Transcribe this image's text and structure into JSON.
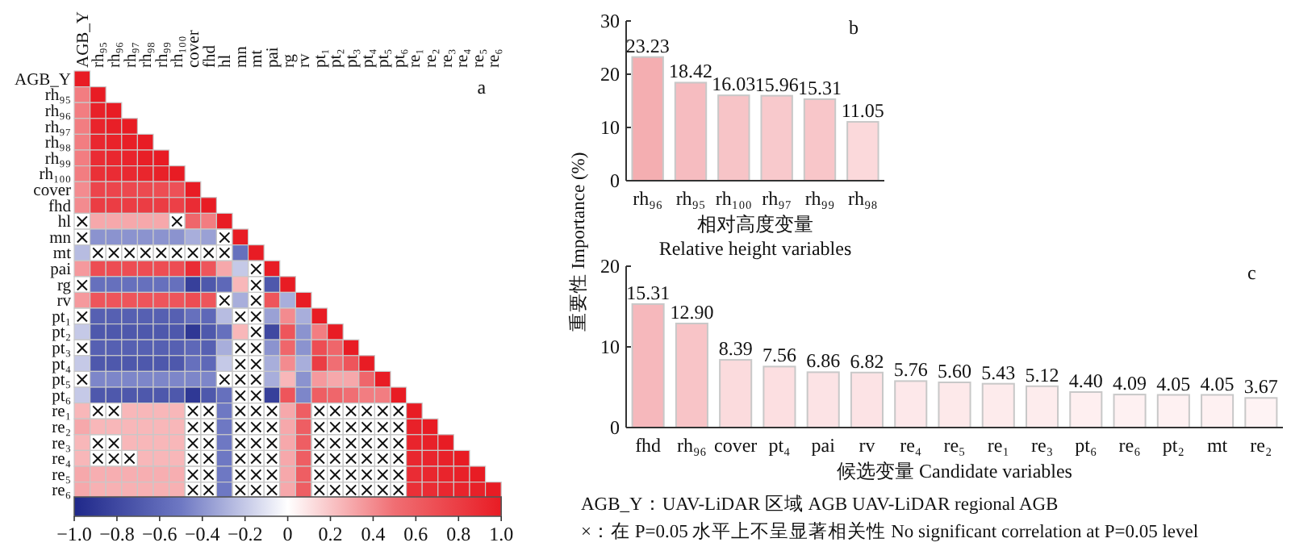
{
  "chart_data": [
    {
      "type": "heatmap",
      "title": "a",
      "categories": [
        "AGB_Y",
        "rh₉₅",
        "rh₉₆",
        "rh₉₇",
        "rh₉₈",
        "rh₉₉",
        "rh₁₀₀",
        "cover",
        "fhd",
        "hl",
        "mn",
        "mt",
        "pai",
        "rg",
        "rv",
        "pt₁",
        "pt₂",
        "pt₃",
        "pt₄",
        "pt₅",
        "pt₆",
        "re₁",
        "re₂",
        "re₃",
        "re₄",
        "re₅",
        "re₆"
      ],
      "y_categories": [
        "AGB_Y",
        "rh₉₅",
        "rh₉₆",
        "rh₉₇",
        "rh₉₈",
        "rh₉₉",
        "rh₁₀₀",
        "cover",
        "fhd",
        "hl",
        "mn",
        "mt",
        "pai",
        "rg",
        "rv",
        "pt₁",
        "pt₂",
        "pt₃",
        "pt₄",
        "pt₅",
        "pt₆",
        "re₁",
        "re₂",
        "re₃",
        "re₄",
        "re₅",
        "re₆"
      ],
      "cells": [
        [
          1,
          null,
          null,
          null,
          null,
          null,
          null,
          null,
          null,
          null,
          null,
          null,
          null,
          null,
          null,
          null,
          null,
          null,
          null,
          null,
          null,
          null,
          null,
          null,
          null,
          null,
          null
        ],
        [
          0.45,
          1,
          null,
          null,
          null,
          null,
          null,
          null,
          null,
          null,
          null,
          null,
          null,
          null,
          null,
          null,
          null,
          null,
          null,
          null,
          null,
          null,
          null,
          null,
          null,
          null,
          null
        ],
        [
          0.45,
          0.97,
          1,
          null,
          null,
          null,
          null,
          null,
          null,
          null,
          null,
          null,
          null,
          null,
          null,
          null,
          null,
          null,
          null,
          null,
          null,
          null,
          null,
          null,
          null,
          null,
          null
        ],
        [
          0.45,
          0.95,
          0.98,
          1,
          null,
          null,
          null,
          null,
          null,
          null,
          null,
          null,
          null,
          null,
          null,
          null,
          null,
          null,
          null,
          null,
          null,
          null,
          null,
          null,
          null,
          null,
          null
        ],
        [
          0.45,
          0.93,
          0.96,
          0.98,
          1,
          null,
          null,
          null,
          null,
          null,
          null,
          null,
          null,
          null,
          null,
          null,
          null,
          null,
          null,
          null,
          null,
          null,
          null,
          null,
          null,
          null,
          null
        ],
        [
          0.45,
          0.9,
          0.93,
          0.95,
          0.98,
          1,
          null,
          null,
          null,
          null,
          null,
          null,
          null,
          null,
          null,
          null,
          null,
          null,
          null,
          null,
          null,
          null,
          null,
          null,
          null,
          null,
          null
        ],
        [
          0.45,
          0.88,
          0.9,
          0.92,
          0.94,
          0.97,
          1,
          null,
          null,
          null,
          null,
          null,
          null,
          null,
          null,
          null,
          null,
          null,
          null,
          null,
          null,
          null,
          null,
          null,
          null,
          null,
          null
        ],
        [
          0.4,
          0.75,
          0.75,
          0.73,
          0.72,
          0.7,
          0.68,
          1,
          null,
          null,
          null,
          null,
          null,
          null,
          null,
          null,
          null,
          null,
          null,
          null,
          null,
          null,
          null,
          null,
          null,
          null,
          null
        ],
        [
          0.4,
          0.8,
          0.8,
          0.8,
          0.8,
          0.8,
          0.78,
          0.9,
          1,
          null,
          null,
          null,
          null,
          null,
          null,
          null,
          null,
          null,
          null,
          null,
          null,
          null,
          null,
          null,
          null,
          null,
          null
        ],
        [
          null,
          0.3,
          0.3,
          0.3,
          0.3,
          0.3,
          null,
          0.55,
          0.45,
          1,
          null,
          null,
          null,
          null,
          null,
          null,
          null,
          null,
          null,
          null,
          null,
          null,
          null,
          null,
          null,
          null,
          null
        ],
        [
          null,
          -0.4,
          -0.4,
          -0.4,
          -0.4,
          -0.4,
          -0.4,
          -0.3,
          -0.35,
          null,
          1,
          null,
          null,
          null,
          null,
          null,
          null,
          null,
          null,
          null,
          null,
          null,
          null,
          null,
          null,
          null,
          null
        ],
        [
          -0.25,
          null,
          null,
          null,
          null,
          null,
          null,
          null,
          null,
          null,
          -0.55,
          1,
          null,
          null,
          null,
          null,
          null,
          null,
          null,
          null,
          null,
          null,
          null,
          null,
          null,
          null,
          null
        ],
        [
          0.35,
          0.7,
          0.7,
          0.7,
          0.7,
          0.7,
          0.7,
          0.9,
          0.65,
          0.3,
          -0.2,
          null,
          1,
          null,
          null,
          null,
          null,
          null,
          null,
          null,
          null,
          null,
          null,
          null,
          null,
          null,
          null
        ],
        [
          null,
          -0.55,
          -0.55,
          -0.55,
          -0.55,
          -0.55,
          -0.55,
          -0.85,
          -0.7,
          -0.6,
          0.25,
          null,
          -0.7,
          1,
          null,
          null,
          null,
          null,
          null,
          null,
          null,
          null,
          null,
          null,
          null,
          null,
          null
        ],
        [
          0.35,
          0.65,
          0.65,
          0.65,
          0.65,
          0.65,
          0.65,
          0.7,
          0.65,
          null,
          -0.3,
          null,
          0.65,
          -0.3,
          1,
          null,
          null,
          null,
          null,
          null,
          null,
          null,
          null,
          null,
          null,
          null,
          null
        ],
        [
          null,
          -0.65,
          -0.65,
          -0.65,
          -0.65,
          -0.65,
          -0.65,
          -0.55,
          -0.6,
          -0.25,
          null,
          null,
          -0.35,
          0.4,
          -0.3,
          1,
          null,
          null,
          null,
          null,
          null,
          null,
          null,
          null,
          null,
          null,
          null
        ],
        [
          -0.2,
          -0.7,
          -0.7,
          -0.7,
          -0.7,
          -0.7,
          -0.7,
          -0.9,
          -0.7,
          -0.55,
          0.25,
          null,
          -0.8,
          0.65,
          -0.4,
          0.45,
          1,
          null,
          null,
          null,
          null,
          null,
          null,
          null,
          null,
          null,
          null
        ],
        [
          null,
          -0.65,
          -0.65,
          -0.65,
          -0.65,
          -0.65,
          -0.65,
          -0.6,
          -0.65,
          -0.3,
          null,
          null,
          -0.4,
          0.55,
          -0.4,
          0.7,
          0.55,
          1,
          null,
          null,
          null,
          null,
          null,
          null,
          null,
          null,
          null
        ],
        [
          -0.2,
          -0.7,
          -0.7,
          -0.7,
          -0.7,
          -0.7,
          -0.7,
          -0.55,
          -0.6,
          -0.2,
          null,
          null,
          -0.3,
          0.4,
          -0.3,
          0.8,
          0.5,
          0.65,
          1,
          null,
          null,
          null,
          null,
          null,
          null,
          null,
          null
        ],
        [
          null,
          -0.45,
          -0.45,
          -0.45,
          -0.45,
          -0.45,
          -0.45,
          -0.45,
          -0.45,
          null,
          null,
          null,
          -0.3,
          0.25,
          -0.4,
          0.35,
          0.3,
          0.3,
          0.55,
          1,
          null,
          null,
          null,
          null,
          null,
          null,
          null
        ],
        [
          -0.2,
          -0.7,
          -0.7,
          -0.7,
          -0.7,
          -0.7,
          -0.7,
          -0.9,
          -0.7,
          -0.55,
          null,
          null,
          -0.85,
          0.65,
          -0.45,
          0.6,
          0.55,
          0.5,
          0.45,
          0.45,
          1,
          null,
          null,
          null,
          null,
          null,
          null
        ],
        [
          0.25,
          null,
          null,
          0.25,
          0.25,
          0.25,
          0.25,
          null,
          null,
          -0.5,
          null,
          null,
          null,
          0.3,
          0.6,
          null,
          null,
          null,
          null,
          null,
          null,
          1,
          null,
          null,
          null,
          null,
          null
        ],
        [
          0.3,
          0.25,
          0.25,
          0.25,
          0.25,
          0.25,
          0.25,
          null,
          null,
          -0.5,
          null,
          null,
          null,
          0.3,
          0.6,
          null,
          null,
          null,
          null,
          null,
          null,
          0.97,
          1,
          null,
          null,
          null,
          null
        ],
        [
          0.25,
          null,
          null,
          0.25,
          0.25,
          0.25,
          0.25,
          null,
          null,
          -0.5,
          null,
          null,
          null,
          0.3,
          0.6,
          null,
          null,
          null,
          null,
          null,
          null,
          0.95,
          0.97,
          1,
          null,
          null,
          null
        ],
        [
          0.25,
          null,
          null,
          null,
          0.25,
          0.25,
          0.25,
          null,
          null,
          -0.5,
          null,
          null,
          null,
          0.3,
          0.6,
          null,
          null,
          null,
          null,
          null,
          null,
          0.93,
          0.95,
          0.97,
          1,
          null,
          null
        ],
        [
          0.3,
          0.28,
          0.28,
          0.28,
          0.28,
          0.28,
          0.28,
          null,
          null,
          -0.5,
          null,
          null,
          null,
          0.3,
          0.6,
          null,
          null,
          null,
          null,
          null,
          null,
          0.9,
          0.93,
          0.95,
          0.97,
          1,
          null
        ],
        [
          0.3,
          0.27,
          0.27,
          0.27,
          0.27,
          0.27,
          0.27,
          null,
          null,
          -0.5,
          null,
          null,
          null,
          0.3,
          0.6,
          null,
          null,
          null,
          null,
          null,
          null,
          0.88,
          0.9,
          0.93,
          0.95,
          0.97,
          1
        ]
      ],
      "cell_labels": [
        [
          null,
          null,
          null,
          null,
          null,
          null,
          null,
          null,
          null,
          null,
          null,
          null,
          null,
          null,
          null,
          null,
          null,
          null,
          null,
          null,
          null,
          null,
          null,
          null,
          null,
          null,
          null
        ],
        [
          null,
          null,
          null,
          null,
          null,
          null,
          null,
          null,
          null,
          null,
          null,
          null,
          null,
          null,
          null,
          null,
          null,
          null,
          null,
          null,
          null,
          null,
          null,
          null,
          null,
          null,
          null
        ],
        [
          null,
          null,
          null,
          null,
          null,
          null,
          null,
          null,
          null,
          null,
          null,
          null,
          null,
          null,
          null,
          null,
          null,
          null,
          null,
          null,
          null,
          null,
          null,
          null,
          null,
          null,
          null
        ],
        [
          null,
          null,
          null,
          null,
          null,
          null,
          null,
          null,
          null,
          null,
          null,
          null,
          null,
          null,
          null,
          null,
          null,
          null,
          null,
          null,
          null,
          null,
          null,
          null,
          null,
          null,
          null
        ],
        [
          null,
          null,
          null,
          null,
          null,
          null,
          null,
          null,
          null,
          null,
          null,
          null,
          null,
          null,
          null,
          null,
          null,
          null,
          null,
          null,
          null,
          null,
          null,
          null,
          null,
          null,
          null
        ],
        [
          null,
          null,
          null,
          null,
          null,
          null,
          null,
          null,
          null,
          null,
          null,
          null,
          null,
          null,
          null,
          null,
          null,
          null,
          null,
          null,
          null,
          null,
          null,
          null,
          null,
          null,
          null
        ],
        [
          null,
          null,
          null,
          null,
          null,
          null,
          null,
          null,
          null,
          null,
          null,
          null,
          null,
          null,
          null,
          null,
          null,
          null,
          null,
          null,
          null,
          null,
          null,
          null,
          null,
          null,
          null
        ],
        [
          null,
          null,
          null,
          null,
          null,
          null,
          null,
          null,
          null,
          null,
          null,
          null,
          null,
          null,
          null,
          null,
          null,
          null,
          null,
          null,
          null,
          null,
          null,
          null,
          null,
          null,
          null
        ],
        [
          null,
          null,
          null,
          null,
          null,
          null,
          null,
          null,
          null,
          null,
          null,
          null,
          null,
          null,
          null,
          null,
          null,
          null,
          null,
          null,
          null,
          null,
          null,
          null,
          null,
          null,
          null
        ],
        [
          "×",
          null,
          null,
          null,
          null,
          null,
          "×",
          null,
          null,
          null,
          null,
          null,
          null,
          null,
          null,
          null,
          null,
          null,
          null,
          null,
          null,
          null,
          null,
          null,
          null,
          null,
          null
        ],
        [
          "×",
          null,
          null,
          null,
          null,
          null,
          null,
          null,
          null,
          "×",
          null,
          null,
          null,
          null,
          null,
          null,
          null,
          null,
          null,
          null,
          null,
          null,
          null,
          null,
          null,
          null,
          null
        ],
        [
          null,
          "×",
          "×",
          "×",
          "×",
          "×",
          "×",
          "×",
          "×",
          "×",
          null,
          null,
          null,
          null,
          null,
          null,
          null,
          null,
          null,
          null,
          null,
          null,
          null,
          null,
          null,
          null,
          null
        ],
        [
          null,
          null,
          null,
          null,
          null,
          null,
          null,
          null,
          null,
          null,
          null,
          "×",
          null,
          null,
          null,
          null,
          null,
          null,
          null,
          null,
          null,
          null,
          null,
          null,
          null,
          null,
          null
        ],
        [
          "×",
          null,
          null,
          null,
          null,
          null,
          null,
          null,
          null,
          null,
          null,
          "×",
          null,
          null,
          null,
          null,
          null,
          null,
          null,
          null,
          null,
          null,
          null,
          null,
          null,
          null,
          null
        ],
        [
          null,
          null,
          null,
          null,
          null,
          null,
          null,
          null,
          null,
          "×",
          null,
          "×",
          null,
          null,
          null,
          null,
          null,
          null,
          null,
          null,
          null,
          null,
          null,
          null,
          null,
          null,
          null
        ],
        [
          "×",
          null,
          null,
          null,
          null,
          null,
          null,
          null,
          null,
          null,
          "×",
          "×",
          null,
          null,
          null,
          null,
          null,
          null,
          null,
          null,
          null,
          null,
          null,
          null,
          null,
          null,
          null
        ],
        [
          null,
          null,
          null,
          null,
          null,
          null,
          null,
          null,
          null,
          null,
          null,
          "×",
          null,
          null,
          null,
          null,
          null,
          null,
          null,
          null,
          null,
          null,
          null,
          null,
          null,
          null,
          null
        ],
        [
          "×",
          null,
          null,
          null,
          null,
          null,
          null,
          null,
          null,
          null,
          "×",
          "×",
          null,
          null,
          null,
          null,
          null,
          null,
          null,
          null,
          null,
          null,
          null,
          null,
          null,
          null,
          null
        ],
        [
          null,
          null,
          null,
          null,
          null,
          null,
          null,
          null,
          null,
          null,
          "×",
          "×",
          null,
          null,
          null,
          null,
          null,
          null,
          null,
          null,
          null,
          null,
          null,
          null,
          null,
          null,
          null
        ],
        [
          "×",
          null,
          null,
          null,
          null,
          null,
          null,
          null,
          null,
          "×",
          "×",
          "×",
          null,
          null,
          null,
          null,
          null,
          null,
          null,
          null,
          null,
          null,
          null,
          null,
          null,
          null,
          null
        ],
        [
          null,
          null,
          null,
          null,
          null,
          null,
          null,
          null,
          null,
          null,
          "×",
          "×",
          null,
          null,
          null,
          null,
          null,
          null,
          null,
          null,
          null,
          null,
          null,
          null,
          null,
          null,
          null
        ],
        [
          null,
          "×",
          "×",
          null,
          null,
          null,
          null,
          "×",
          "×",
          null,
          "×",
          "×",
          "×",
          null,
          null,
          "×",
          "×",
          "×",
          "×",
          "×",
          "×",
          null,
          null,
          null,
          null,
          null,
          null
        ],
        [
          null,
          null,
          null,
          null,
          null,
          null,
          null,
          "×",
          "×",
          null,
          "×",
          "×",
          "×",
          null,
          null,
          "×",
          "×",
          "×",
          "×",
          "×",
          "×",
          null,
          null,
          null,
          null,
          null,
          null
        ],
        [
          null,
          "×",
          "×",
          null,
          null,
          null,
          null,
          "×",
          "×",
          null,
          "×",
          "×",
          "×",
          null,
          null,
          "×",
          "×",
          "×",
          "×",
          "×",
          "×",
          null,
          null,
          null,
          null,
          null,
          null
        ],
        [
          null,
          "×",
          "×",
          "×",
          null,
          null,
          null,
          "×",
          "×",
          null,
          "×",
          "×",
          "×",
          null,
          null,
          "×",
          "×",
          "×",
          "×",
          "×",
          "×",
          null,
          null,
          null,
          null,
          null,
          null
        ],
        [
          null,
          null,
          null,
          null,
          null,
          null,
          null,
          "×",
          "×",
          null,
          "×",
          "×",
          "×",
          null,
          null,
          "×",
          "×",
          "×",
          "×",
          "×",
          "×",
          null,
          null,
          null,
          null,
          null,
          null
        ],
        [
          null,
          null,
          null,
          null,
          null,
          null,
          null,
          "×",
          "×",
          null,
          "×",
          "×",
          "×",
          null,
          null,
          "×",
          "×",
          "×",
          "×",
          "×",
          "×",
          null,
          null,
          null,
          null,
          null,
          null
        ]
      ],
      "clim": [
        -1,
        1
      ],
      "cticks": [
        {
          "value": -1,
          "label": "−1.0"
        },
        {
          "value": -0.8,
          "label": "−0.8"
        },
        {
          "value": -0.6,
          "label": "−0.6"
        },
        {
          "value": -0.4,
          "label": "−0.4"
        },
        {
          "value": -0.2,
          "label": "−0.2"
        },
        0,
        {
          "value": 0.2,
          "label": "0.2"
        },
        {
          "value": 0.4,
          "label": "0.4"
        },
        {
          "value": 0.6,
          "label": "0.6"
        },
        {
          "value": 0.8,
          "label": "0.8"
        },
        {
          "value": 1,
          "label": "1.0"
        }
      ],
      "annotations": [
        "AGB_Y：UAV-LiDAR 区域 AGB UAV-LiDAR regional AGB",
        "×：在 P=0.05 水平上不呈显著相关性 No significant correlation at P=0.05 level"
      ]
    },
    {
      "type": "bar",
      "title": "b",
      "xlabel": "相对高度变量\nRelative height variables",
      "categories": [
        "rh₉₆",
        "rh₉₅",
        "rh₁₀₀",
        "rh₉₇",
        "rh₉₉",
        "rh₉₈"
      ],
      "values": [
        23.23,
        18.42,
        16.03,
        15.96,
        15.31,
        11.05
      ],
      "colors": [
        "#f4aeb1",
        "#f6bcc0",
        "#f7c4c7",
        "#f8c9cc",
        "#f8c6c9",
        "#fbd9db"
      ],
      "data_labels": true,
      "ylim": [
        0,
        30
      ],
      "yticks": [
        0,
        10,
        20,
        30
      ]
    },
    {
      "type": "bar",
      "title": "c",
      "xlabel": "候选变量 Candidate variables",
      "ylabel": "重要性 Importance (%)",
      "categories": [
        "fhd",
        "rh₉₆",
        "cover",
        "pt₄",
        "pai",
        "rv",
        "re₄",
        "re₅",
        "re₁",
        "re₃",
        "pt₆",
        "re₆",
        "pt₂",
        "mt",
        "re₂"
      ],
      "values": [
        15.31,
        12.9,
        8.39,
        7.56,
        6.86,
        6.82,
        5.76,
        5.6,
        5.43,
        5.12,
        4.4,
        4.09,
        4.05,
        4.05,
        3.67
      ],
      "value_labels": [
        "15.31",
        "12.90",
        "8.39",
        "7.56",
        "6.86",
        "6.82",
        "5.76",
        "5.60",
        "5.43",
        "5.12",
        "4.40",
        "4.09",
        "4.05",
        "4.05",
        "3.67"
      ],
      "colors": [
        "#f6b8bc",
        "#f8c4c7",
        "#fbdbdd",
        "#fcdfe1",
        "#fce3e5",
        "#fce3e5",
        "#fde8ea",
        "#fde9ea",
        "#fdebec",
        "#fdeced",
        "#feeff0",
        "#fef1f2",
        "#fef1f2",
        "#fef1f2",
        "#fef3f4"
      ],
      "ylim": [
        0,
        20
      ],
      "yticks": [
        0,
        10,
        20
      ]
    }
  ]
}
